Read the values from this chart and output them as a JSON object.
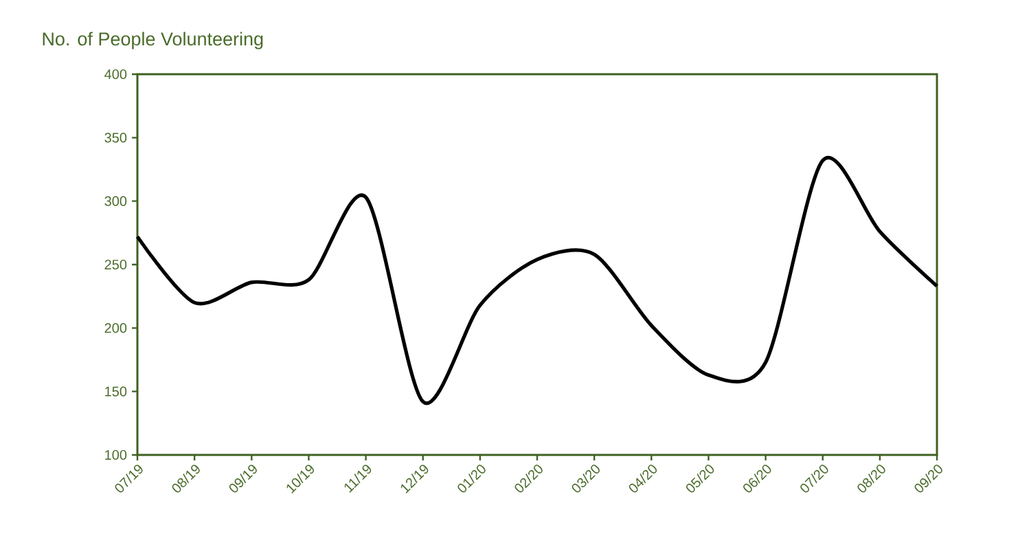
{
  "chart_data": {
    "type": "line",
    "title": "No. of People Volunteering",
    "categories": [
      "07/19",
      "08/19",
      "09/19",
      "10/19",
      "11/19",
      "12/19",
      "01/20",
      "02/20",
      "03/20",
      "04/20",
      "05/20",
      "06/20",
      "07/20",
      "08/20",
      "09/20"
    ],
    "values": [
      272,
      220,
      236,
      238,
      303,
      142,
      218,
      254,
      258,
      202,
      163,
      173,
      332,
      276,
      233
    ],
    "color": "#000000",
    "ylim": [
      100,
      400
    ],
    "yticks": [
      100,
      150,
      200,
      250,
      300,
      350,
      400
    ],
    "grid": false,
    "marker": "none",
    "line_style": "solid"
  }
}
